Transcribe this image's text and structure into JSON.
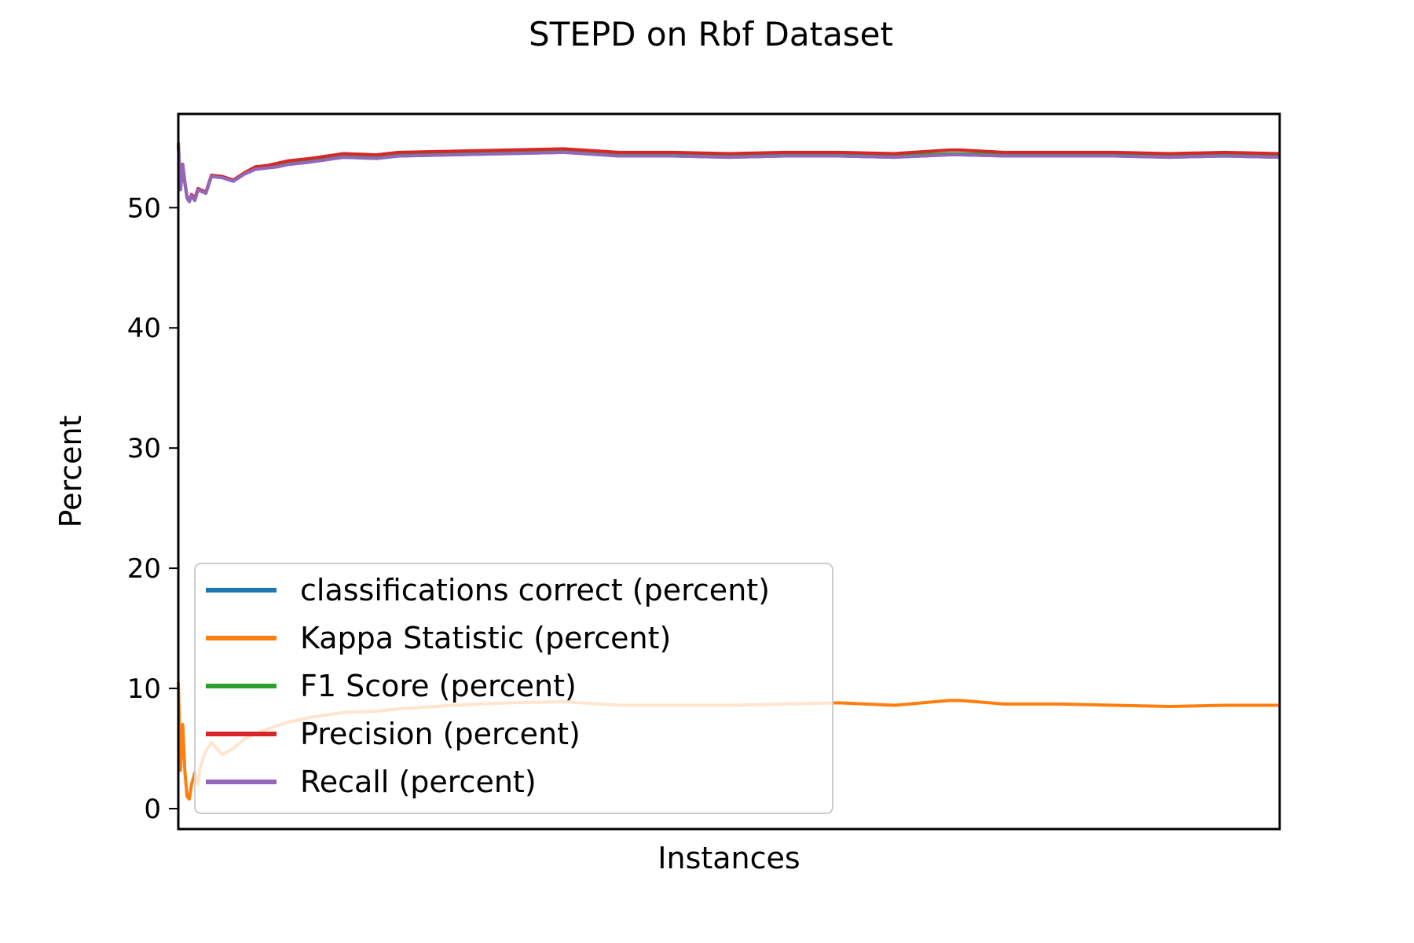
{
  "chart_data": {
    "type": "line",
    "title": "STEPD on Rbf Dataset",
    "xlabel": "Instances",
    "ylabel": "Percent",
    "xlim": [
      0,
      1000
    ],
    "ylim": [
      -1.7,
      57.8
    ],
    "yticks": [
      0,
      10,
      20,
      30,
      40,
      50
    ],
    "x_ticks_shown": false,
    "grid": false,
    "legend_position": "lower-left",
    "series": [
      {
        "name": "classifications correct (percent)",
        "color": "#1f77b4",
        "x": [
          0,
          2,
          4,
          6,
          8,
          10,
          12,
          15,
          18,
          20,
          25,
          30,
          40,
          50,
          60,
          70,
          80,
          90,
          100,
          120,
          150,
          180,
          200,
          250,
          300,
          350,
          400,
          450,
          500,
          550,
          600,
          650,
          700,
          710,
          750,
          800,
          850,
          900,
          950,
          1000
        ],
        "y": [
          55.3,
          51.5,
          53.5,
          52.0,
          50.8,
          50.5,
          51.0,
          50.6,
          51.5,
          51.4,
          51.2,
          52.6,
          52.5,
          52.2,
          52.8,
          53.2,
          53.3,
          53.4,
          53.6,
          53.8,
          54.2,
          54.1,
          54.3,
          54.4,
          54.5,
          54.6,
          54.3,
          54.3,
          54.2,
          54.3,
          54.3,
          54.2,
          54.4,
          54.4,
          54.3,
          54.3,
          54.3,
          54.2,
          54.3,
          54.2
        ]
      },
      {
        "name": "Kappa Statistic (percent)",
        "color": "#ff7f0e",
        "x": [
          0,
          2,
          4,
          6,
          8,
          10,
          12,
          15,
          18,
          20,
          25,
          30,
          40,
          50,
          60,
          70,
          80,
          90,
          100,
          120,
          150,
          180,
          200,
          250,
          300,
          350,
          400,
          450,
          500,
          550,
          600,
          650,
          700,
          710,
          750,
          800,
          850,
          900,
          950,
          1000
        ],
        "y": [
          10.5,
          3.2,
          7.0,
          3.0,
          1.0,
          0.8,
          2.0,
          3.0,
          2.0,
          3.5,
          4.8,
          5.5,
          4.5,
          5.0,
          5.8,
          6.2,
          6.6,
          6.9,
          7.2,
          7.6,
          8.0,
          8.1,
          8.3,
          8.6,
          8.8,
          8.9,
          8.6,
          8.6,
          8.6,
          8.7,
          8.8,
          8.6,
          9.0,
          9.0,
          8.7,
          8.7,
          8.6,
          8.5,
          8.6,
          8.6
        ]
      },
      {
        "name": "F1 Score (percent)",
        "color": "#2ca02c",
        "x": [
          0,
          2,
          4,
          6,
          8,
          10,
          12,
          15,
          18,
          20,
          25,
          30,
          40,
          50,
          60,
          70,
          80,
          90,
          100,
          120,
          150,
          180,
          200,
          250,
          300,
          350,
          400,
          450,
          500,
          550,
          600,
          650,
          700,
          710,
          750,
          800,
          850,
          900,
          950,
          1000
        ],
        "y": [
          55.3,
          51.6,
          53.5,
          52.0,
          50.8,
          50.5,
          51.0,
          50.7,
          51.5,
          51.4,
          51.2,
          52.6,
          52.5,
          52.2,
          52.8,
          53.2,
          53.3,
          53.5,
          53.7,
          53.9,
          54.3,
          54.2,
          54.4,
          54.5,
          54.6,
          54.7,
          54.4,
          54.4,
          54.3,
          54.4,
          54.4,
          54.3,
          54.5,
          54.5,
          54.4,
          54.4,
          54.4,
          54.3,
          54.4,
          54.3
        ]
      },
      {
        "name": "Precision (percent)",
        "color": "#d62728",
        "x": [
          0,
          2,
          4,
          6,
          8,
          10,
          12,
          15,
          18,
          20,
          25,
          30,
          40,
          50,
          60,
          70,
          80,
          90,
          100,
          120,
          150,
          180,
          200,
          250,
          300,
          350,
          400,
          450,
          500,
          550,
          600,
          650,
          700,
          710,
          750,
          800,
          850,
          900,
          950,
          1000
        ],
        "y": [
          55.4,
          51.7,
          53.6,
          52.1,
          50.9,
          50.6,
          51.1,
          50.8,
          51.6,
          51.5,
          51.3,
          52.7,
          52.6,
          52.3,
          52.9,
          53.4,
          53.5,
          53.7,
          53.9,
          54.1,
          54.5,
          54.4,
          54.6,
          54.7,
          54.8,
          54.9,
          54.6,
          54.6,
          54.5,
          54.6,
          54.6,
          54.5,
          54.8,
          54.8,
          54.6,
          54.6,
          54.6,
          54.5,
          54.6,
          54.5
        ]
      },
      {
        "name": "Recall (percent)",
        "color": "#9467bd",
        "x": [
          0,
          2,
          4,
          6,
          8,
          10,
          12,
          15,
          18,
          20,
          25,
          30,
          40,
          50,
          60,
          70,
          80,
          90,
          100,
          120,
          150,
          180,
          200,
          250,
          300,
          350,
          400,
          450,
          500,
          550,
          600,
          650,
          700,
          710,
          750,
          800,
          850,
          900,
          950,
          1000
        ],
        "y": [
          55.3,
          51.5,
          53.5,
          52.0,
          50.8,
          50.5,
          51.0,
          50.6,
          51.5,
          51.4,
          51.2,
          52.6,
          52.5,
          52.2,
          52.8,
          53.2,
          53.3,
          53.4,
          53.6,
          53.8,
          54.2,
          54.1,
          54.3,
          54.4,
          54.5,
          54.6,
          54.3,
          54.3,
          54.2,
          54.3,
          54.3,
          54.2,
          54.4,
          54.4,
          54.3,
          54.3,
          54.3,
          54.2,
          54.3,
          54.2
        ]
      }
    ]
  }
}
